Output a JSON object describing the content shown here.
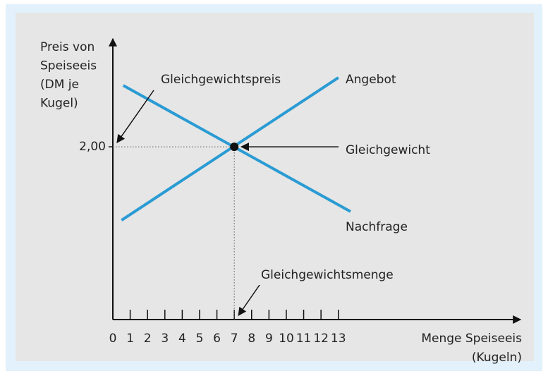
{
  "chart_data": {
    "type": "line",
    "y_label": [
      "Preis von",
      "Speiseeis",
      "(DM je",
      "Kugel)"
    ],
    "x_label": [
      "Menge Speiseeis",
      "(Kugeln)"
    ],
    "xlim": [
      0,
      23.5
    ],
    "ylim": [
      0,
      3.25
    ],
    "xticks": [
      0,
      1,
      2,
      3,
      4,
      5,
      6,
      7,
      8,
      9,
      10,
      11,
      12,
      13
    ],
    "yticks": [
      {
        "value": 2,
        "label": "2,00"
      }
    ],
    "series": [
      {
        "name": "Angebot",
        "color": "#2a9bd3",
        "x": [
          0.5,
          13
        ],
        "values": [
          1.15,
          2.8
        ]
      },
      {
        "name": "Nachfrage",
        "color": "#2a9bd3",
        "x": [
          0.6,
          13.7
        ],
        "values": [
          2.71,
          1.25
        ]
      }
    ],
    "equilibrium": {
      "name": "Gleichgewicht",
      "x": 7,
      "y": 2
    },
    "annotations": [
      "Gleichgewichtspreis",
      "Gleichgewichtsmenge"
    ]
  }
}
